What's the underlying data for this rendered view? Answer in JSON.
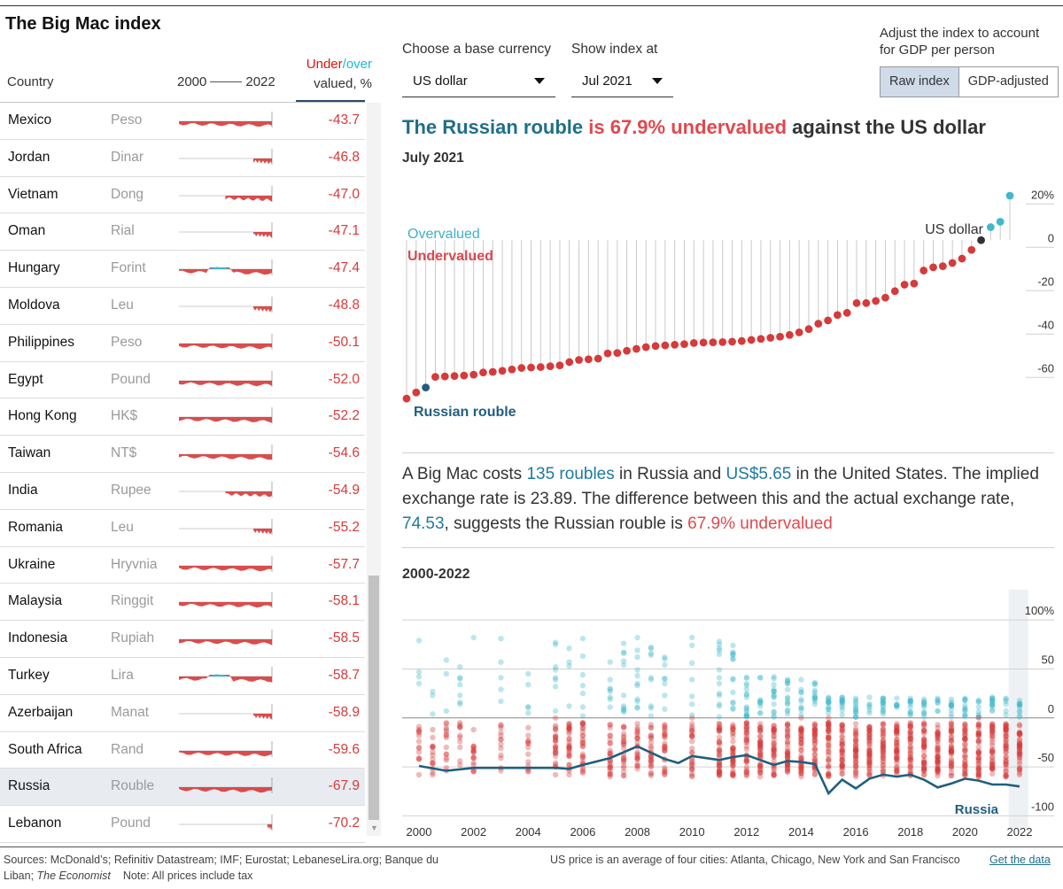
{
  "title": "The Big Mac index",
  "table": {
    "header_country": "Country",
    "header_start_year": "2000",
    "header_end_year": "2022",
    "header_under": "Under",
    "header_slash": "/",
    "header_over": "over",
    "header_valued": "valued, %",
    "rows": [
      {
        "country": "Mexico",
        "currency": "Peso",
        "value": "-43.7",
        "spark": "long"
      },
      {
        "country": "Jordan",
        "currency": "Dinar",
        "value": "-46.8",
        "spark": "short"
      },
      {
        "country": "Vietnam",
        "currency": "Dong",
        "value": "-47.0",
        "spark": "medium"
      },
      {
        "country": "Oman",
        "currency": "Rial",
        "value": "-47.1",
        "spark": "short"
      },
      {
        "country": "Hungary",
        "currency": "Forint",
        "value": "-47.4",
        "spark": "mixed"
      },
      {
        "country": "Moldova",
        "currency": "Leu",
        "value": "-48.8",
        "spark": "short"
      },
      {
        "country": "Philippines",
        "currency": "Peso",
        "value": "-50.1",
        "spark": "long"
      },
      {
        "country": "Egypt",
        "currency": "Pound",
        "value": "-52.0",
        "spark": "long"
      },
      {
        "country": "Hong Kong",
        "currency": "HK$",
        "value": "-52.2",
        "spark": "full"
      },
      {
        "country": "Taiwan",
        "currency": "NT$",
        "value": "-54.6",
        "spark": "full"
      },
      {
        "country": "India",
        "currency": "Rupee",
        "value": "-54.9",
        "spark": "medium"
      },
      {
        "country": "Romania",
        "currency": "Leu",
        "value": "-55.2",
        "spark": "short"
      },
      {
        "country": "Ukraine",
        "currency": "Hryvnia",
        "value": "-57.7",
        "spark": "long"
      },
      {
        "country": "Malaysia",
        "currency": "Ringgit",
        "value": "-58.1",
        "spark": "full"
      },
      {
        "country": "Indonesia",
        "currency": "Rupiah",
        "value": "-58.5",
        "spark": "full"
      },
      {
        "country": "Turkey",
        "currency": "Lira",
        "value": "-58.7",
        "spark": "mixed"
      },
      {
        "country": "Azerbaijan",
        "currency": "Manat",
        "value": "-58.9",
        "spark": "short"
      },
      {
        "country": "South Africa",
        "currency": "Rand",
        "value": "-59.6",
        "spark": "full"
      },
      {
        "country": "Russia",
        "currency": "Rouble",
        "value": "-67.9",
        "spark": "full",
        "selected": true
      },
      {
        "country": "Lebanon",
        "currency": "Pound",
        "value": "-70.2",
        "spark": "tiny"
      }
    ]
  },
  "controls": {
    "base_currency_label": "Choose a base currency",
    "base_currency_value": "US dollar",
    "show_index_label": "Show index at",
    "show_index_value": "Jul 2021",
    "adjust_line1": "Adjust the index to account",
    "adjust_line2": "for GDP per person",
    "raw_index": "Raw index",
    "gdp_adjusted": "GDP-adjusted"
  },
  "headline": {
    "part1": "The Russian rouble",
    "part2": " is 67.9% undervalued",
    "part3": " against the US dollar"
  },
  "date": "July 2021",
  "explain": {
    "t1": "A Big Mac costs ",
    "roubles": "135 roubles",
    "t2": " in Russia and ",
    "usd": "US$5.65",
    "t3": " in the United States. The implied exchange rate is 23.89. The difference between this and the actual exchange rate, ",
    "rate": "74.53",
    "t4": ", suggests the Russian rouble is ",
    "pct": "67.9% undervalued"
  },
  "range_title": "2000-2022",
  "colors": {
    "under": "#d63a3a",
    "over": "#3fb8cc",
    "line": "#1f5f7f",
    "grid": "#d0d0d0",
    "dark": "#333333"
  },
  "chart_data": [
    {
      "type": "scatter",
      "title": "The Russian rouble is 67.9% undervalued against the US dollar",
      "subtitle": "July 2021",
      "ylim": [
        -75,
        25
      ],
      "yticks": [
        20,
        0,
        -20,
        -40,
        -60
      ],
      "ytick_labels": [
        "20%",
        "0",
        "-20",
        "-40",
        "-60"
      ],
      "label_over": "Overvalued",
      "label_under": "Undervalued",
      "label_base": "US dollar",
      "label_highlight": "Russian rouble",
      "values": [
        -73.0,
        -70.2,
        -67.9,
        -63.0,
        -62.8,
        -62.6,
        -62.4,
        -62.0,
        -61.0,
        -60.7,
        -60.2,
        -59.6,
        -58.9,
        -58.7,
        -58.5,
        -58.1,
        -57.7,
        -56.2,
        -55.2,
        -54.9,
        -54.6,
        -52.2,
        -52.0,
        -51.0,
        -50.1,
        -49.3,
        -48.8,
        -48.5,
        -48.2,
        -47.9,
        -47.4,
        -47.2,
        -47.1,
        -47.0,
        -46.8,
        -46.5,
        -46.0,
        -45.5,
        -45.0,
        -44.5,
        -43.7,
        -42.5,
        -41.0,
        -38.5,
        -37.0,
        -34.5,
        -33.5,
        -29.0,
        -29.0,
        -28.0,
        -26.5,
        -23.5,
        -20.5,
        -20.0,
        -14.0,
        -12.5,
        -12.0,
        -10.5,
        -8.5,
        -4.5,
        0,
        6.0,
        8.5,
        20.5
      ],
      "highlight_index": 2,
      "base_index": 60
    },
    {
      "type": "line",
      "title": "2000-2022",
      "x_ticks": [
        2000,
        2002,
        2004,
        2006,
        2008,
        2010,
        2012,
        2014,
        2016,
        2018,
        2020,
        2022
      ],
      "ylim": [
        -115,
        120
      ],
      "yticks": [
        100,
        50,
        0,
        -50,
        -100
      ],
      "ytick_labels": [
        "100%",
        "50",
        "0",
        "-50",
        "-100"
      ],
      "series": [
        {
          "name": "Russia",
          "x": [
            2000,
            2001,
            2002,
            2003,
            2004,
            2005,
            2005.5,
            2006,
            2007,
            2008,
            2009,
            2009.5,
            2010,
            2011,
            2011.5,
            2012,
            2013,
            2013.5,
            2014,
            2014.5,
            2015,
            2015.5,
            2016,
            2016.5,
            2017,
            2017.5,
            2018,
            2018.5,
            2019,
            2019.5,
            2020,
            2020.5,
            2021,
            2021.5,
            2022
          ],
          "values": [
            -49,
            -54,
            -51,
            -51,
            -51,
            -51,
            -52,
            -48,
            -41,
            -29,
            -42,
            -46,
            -39,
            -43,
            -40,
            -38,
            -48,
            -44,
            -45,
            -47,
            -77,
            -63,
            -72,
            -62,
            -58,
            -60,
            -58,
            -63,
            -71,
            -67,
            -62,
            -64,
            -68,
            -68,
            -70
          ]
        }
      ],
      "label_highlight": "Russia"
    }
  ],
  "footer": {
    "sources1": "Sources: McDonald’s; Refinitiv Datastream; IMF; Eurostat; LebaneseLira.org; Banque du",
    "sources2a": "Liban; ",
    "sources2b": "The Economist",
    "note": "Note: All prices include tax",
    "us_price": "US price is an average of four cities: Atlanta, Chicago, New York and San Francisco",
    "get_data": "Get the data"
  }
}
